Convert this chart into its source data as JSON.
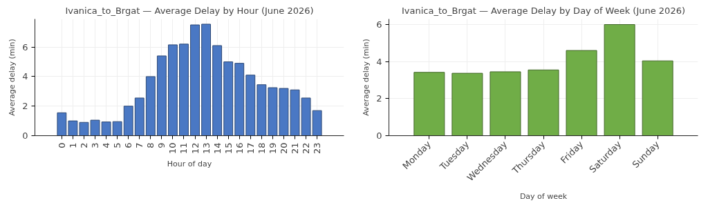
{
  "chart_data": [
    {
      "type": "bar",
      "title": "Ivanica_to_Brgat — Average Delay by Hour (June 2026)",
      "xlabel": "Hour of day",
      "ylabel": "Average delay (min)",
      "categories": [
        "0",
        "1",
        "2",
        "3",
        "4",
        "5",
        "6",
        "7",
        "8",
        "9",
        "10",
        "11",
        "12",
        "13",
        "14",
        "15",
        "16",
        "17",
        "18",
        "19",
        "20",
        "21",
        "22",
        "23"
      ],
      "series": [
        {
          "color": "#4a78c4",
          "values": [
            1.55,
            1.0,
            0.9,
            1.05,
            0.93,
            0.95,
            2.0,
            2.55,
            4.0,
            5.4,
            6.15,
            6.2,
            7.5,
            7.55,
            6.1,
            5.0,
            4.9,
            4.1,
            3.45,
            3.25,
            3.2,
            3.1,
            2.55,
            1.7
          ]
        }
      ],
      "ylim": [
        0,
        7.9
      ],
      "yticks": [
        0,
        2,
        4,
        6
      ],
      "grid": true
    },
    {
      "type": "bar",
      "title": "Ivanica_to_Brgat — Average Delay by Day of Week (June 2026)",
      "xlabel": "Day of week",
      "ylabel": "Average delay (min)",
      "categories": [
        "Monday",
        "Tuesday",
        "Wednesday",
        "Thursday",
        "Friday",
        "Saturday",
        "Sunday"
      ],
      "series": [
        {
          "color": "#70ad47",
          "values": [
            3.42,
            3.37,
            3.45,
            3.55,
            4.6,
            6.0,
            4.04
          ]
        }
      ],
      "ylim": [
        0,
        6.3
      ],
      "yticks": [
        0,
        2,
        4,
        6
      ],
      "grid": true
    }
  ]
}
